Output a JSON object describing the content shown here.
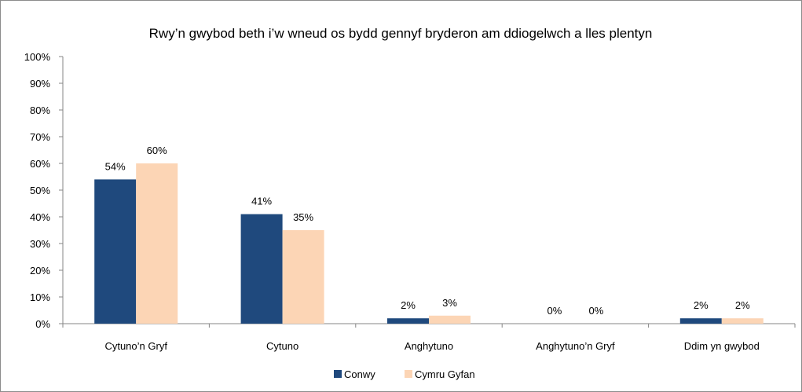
{
  "chart_data": {
    "type": "bar",
    "title": "Rwy’n gwybod beth i’w wneud os bydd gennyf bryderon am ddiogelwch a lles plentyn",
    "categories": [
      "Cytuno’n Gryf",
      "Cytuno",
      "Anghytuno",
      "Anghytuno’n Gryf",
      "Ddim yn gwybod"
    ],
    "series": [
      {
        "name": "Conwy",
        "values": [
          54,
          41,
          2,
          0,
          2
        ],
        "labels": [
          "54%",
          "41%",
          "2%",
          "0%",
          "2%"
        ],
        "color": "#1f497d"
      },
      {
        "name": "Cymru Gyfan",
        "values": [
          60,
          35,
          3,
          0,
          2
        ],
        "labels": [
          "60%",
          "35%",
          "3%",
          "0%",
          "2%"
        ],
        "color": "#fcd5b5"
      }
    ],
    "ylim": [
      0,
      100
    ],
    "yticks": [
      "0%",
      "10%",
      "20%",
      "30%",
      "40%",
      "50%",
      "60%",
      "70%",
      "80%",
      "90%",
      "100%"
    ],
    "xlabel": "",
    "ylabel": "",
    "grid": false,
    "legend": "bottom"
  }
}
